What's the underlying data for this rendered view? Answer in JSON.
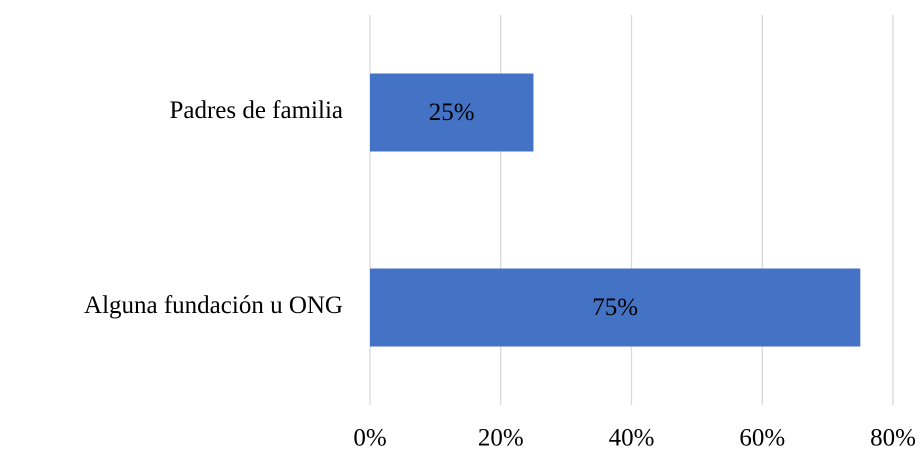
{
  "chart_data": {
    "type": "bar",
    "orientation": "horizontal",
    "categories": [
      "Padres de familia",
      "Alguna fundación u ONG"
    ],
    "values": [
      25,
      75
    ],
    "value_labels": [
      "25%",
      "75%"
    ],
    "color": "#4472c4",
    "xlim": [
      0,
      80
    ],
    "xticks": [
      {
        "value": 0,
        "label": "0%"
      },
      {
        "value": 20,
        "label": "20%"
      },
      {
        "value": 40,
        "label": "40%"
      },
      {
        "value": 60,
        "label": "60%"
      },
      {
        "value": 80,
        "label": "80%"
      }
    ],
    "grid": true
  }
}
